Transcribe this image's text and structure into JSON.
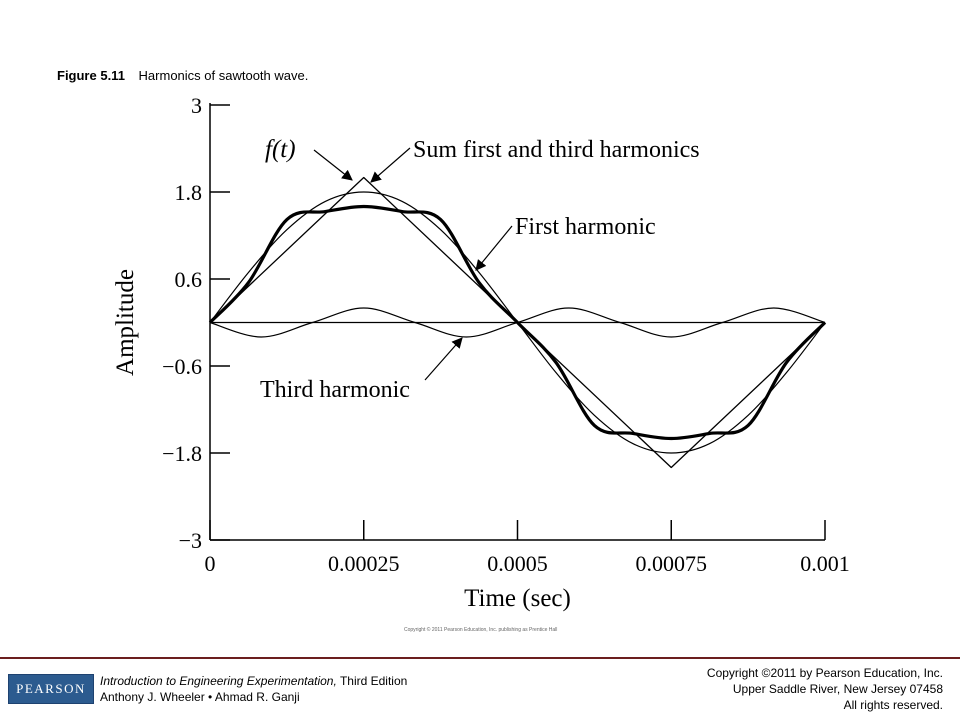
{
  "figure": {
    "number": "Figure 5.11",
    "caption": "Harmonics of sawtooth wave."
  },
  "chart_data": {
    "type": "line",
    "xlabel": "Time (sec)",
    "ylabel": "Amplitude",
    "xlim": [
      0,
      0.001
    ],
    "ylim": [
      -3,
      3
    ],
    "x_ticks": [
      0,
      0.00025,
      0.0005,
      0.00075,
      0.001
    ],
    "x_tick_labels": [
      "0",
      "0.00025",
      "0.0005",
      "0.00075",
      "0.001"
    ],
    "y_ticks": [
      3,
      1.8,
      0.6,
      -0.6,
      -1.8,
      -3
    ],
    "y_tick_labels": [
      "3",
      "1.8",
      "0.6",
      "−0.6",
      "−1.8",
      "−3"
    ],
    "series": [
      {
        "name": "f(t)",
        "x": [
          0,
          0.00025,
          0.00075,
          0.001
        ],
        "values": [
          0,
          2.0,
          -2.0,
          0
        ]
      },
      {
        "name": "First harmonic",
        "x": [
          0,
          6.25e-05,
          0.000125,
          0.0001875,
          0.00025,
          0.0003125,
          0.000375,
          0.0004375,
          0.0005,
          0.0005625,
          0.000625,
          0.0006875,
          0.00075,
          0.0008125,
          0.000875,
          0.0009375,
          0.001
        ],
        "values": [
          0,
          0.69,
          1.28,
          1.67,
          1.8,
          1.67,
          1.28,
          0.69,
          0,
          -0.69,
          -1.28,
          -1.67,
          -1.8,
          -1.67,
          -1.28,
          -0.69,
          0
        ]
      },
      {
        "name": "Third harmonic",
        "x": [
          0,
          8.33e-05,
          0.0001667,
          0.00025,
          0.0003333,
          0.0004167,
          0.0005,
          0.0005833,
          0.0006667,
          0.00075,
          0.0008333,
          0.0009167,
          0.001
        ],
        "values": [
          0,
          -0.2,
          0,
          0.2,
          0,
          -0.2,
          0,
          0.2,
          0,
          -0.2,
          0,
          0.2,
          0
        ]
      },
      {
        "name": "Sum first and third harmonics",
        "x": [
          0,
          6.25e-05,
          0.000125,
          0.0001875,
          0.00025,
          0.0003125,
          0.000375,
          0.0004375,
          0.0005,
          0.0005625,
          0.000625,
          0.0006875,
          0.00075,
          0.0008125,
          0.000875,
          0.0009375,
          0.001
        ],
        "values": [
          0,
          0.55,
          1.42,
          1.53,
          1.6,
          1.53,
          1.42,
          0.55,
          0,
          -0.55,
          -1.42,
          -1.53,
          -1.6,
          -1.53,
          -1.42,
          -0.55,
          0
        ]
      }
    ],
    "annotations": [
      {
        "text": "f(t)",
        "target": "f(t)"
      },
      {
        "text": "Sum first and third harmonics",
        "target": "Sum first and third harmonics"
      },
      {
        "text": "First harmonic",
        "target": "First harmonic"
      },
      {
        "text": "Third harmonic",
        "target": "Third harmonic"
      }
    ],
    "grid": false,
    "legend": "none"
  },
  "figure_copyright": "Copyright © 2011 Pearson Education, Inc. publishing as Prentice Hall",
  "footer": {
    "logo_text": "PEARSON",
    "book_title": "Introduction to Engineering Experimentation,",
    "book_edition": "Third Edition",
    "authors": "Anthony J. Wheeler • Ahmad R. Ganji",
    "copyright_line1": "Copyright ©2011 by Pearson Education, Inc.",
    "copyright_line2": "Upper Saddle River, New Jersey 07458",
    "copyright_line3": "All rights reserved."
  },
  "colors": {
    "footer_rule": "#6b1e1e",
    "logo_background": "#2c5b8f"
  }
}
